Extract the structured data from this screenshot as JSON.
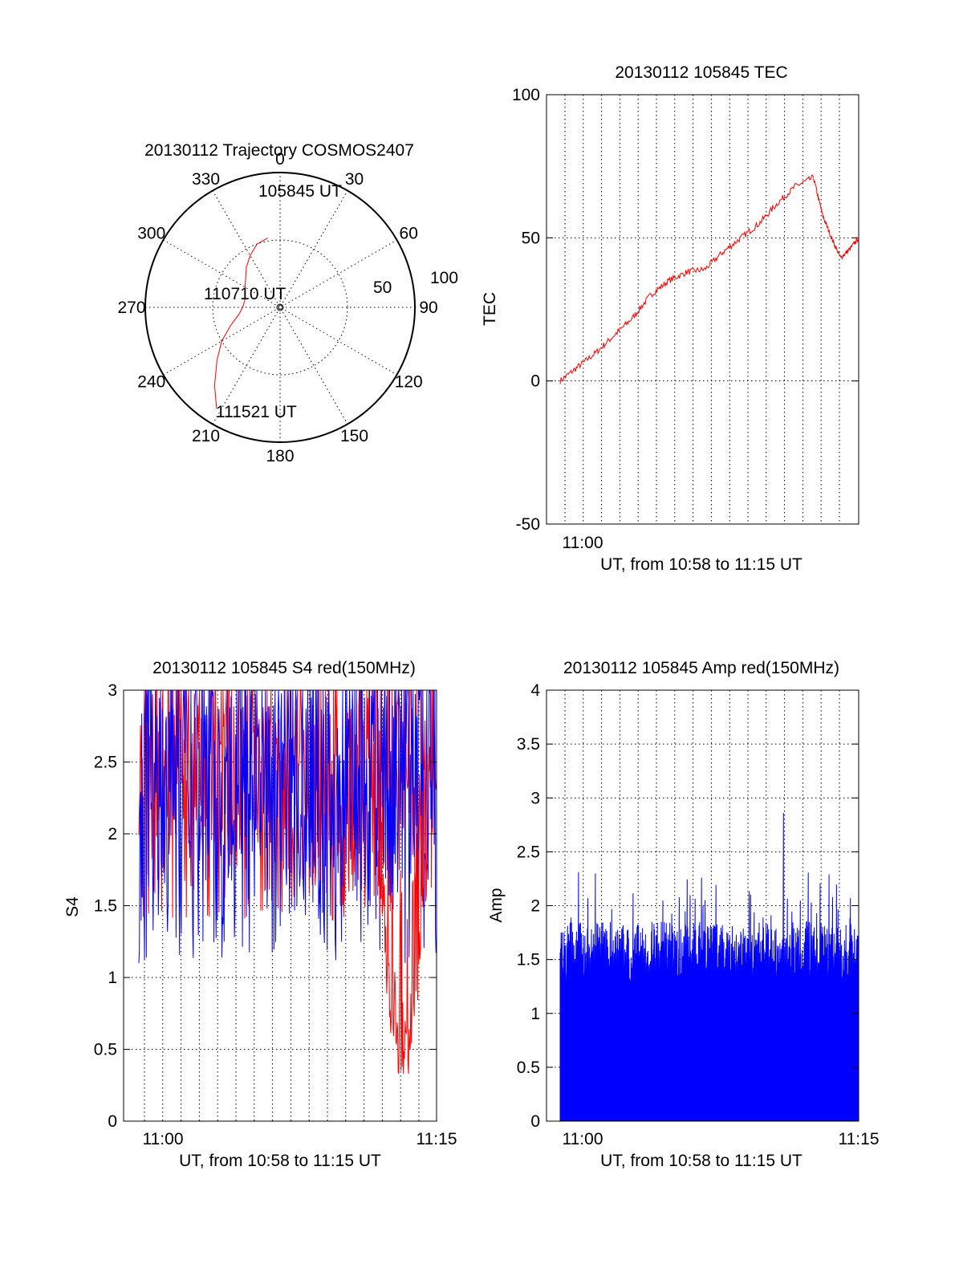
{
  "chart_data": [
    {
      "type": "polar",
      "title": "20130112 Trajectory COSMOS2407",
      "angle_labels": [
        "0",
        "30",
        "60",
        "90",
        "120",
        "150",
        "180",
        "210",
        "240",
        "270",
        "300",
        "330"
      ],
      "radial_labels": [
        "50",
        "100"
      ],
      "line_color": "#ff0000",
      "trajectory": {
        "azimuth_deg": [
          350,
          340,
          330,
          320,
          310,
          300,
          290,
          280,
          270,
          260,
          250,
          240,
          230,
          220,
          212
        ],
        "zenith": [
          47,
          45,
          40,
          35,
          30,
          27,
          25,
          24,
          25,
          28,
          35,
          45,
          55,
          68,
          80
        ]
      },
      "annotations": [
        {
          "text": "105845 UT",
          "azimuth_deg": 350,
          "zenith": 47
        },
        {
          "text": "110710 UT",
          "azimuth_deg": 270,
          "zenith": 25
        },
        {
          "text": "111521 UT",
          "azimuth_deg": 212,
          "zenith": 80
        }
      ]
    },
    {
      "type": "line",
      "title": "20130112 105845 TEC",
      "xlabel": "UT, from 10:58 to 11:15 UT",
      "ylabel": "TEC",
      "x_tick_labels": [
        "11:00"
      ],
      "y_ticks": [
        -50,
        0,
        50,
        100
      ],
      "ylim": [
        -50,
        100
      ],
      "color": "#ff0000",
      "series": [
        {
          "x": [
            10.98,
            11.0,
            11.02,
            11.04,
            11.06,
            11.08,
            11.1,
            11.12,
            11.14,
            11.16,
            11.18,
            11.2,
            11.22,
            11.24,
            11.26
          ],
          "y": [
            0,
            5,
            10,
            16,
            22,
            30,
            35,
            38,
            39,
            45,
            50,
            55,
            62,
            68,
            71
          ]
        },
        {
          "x": [
            11.26,
            11.27,
            11.28,
            11.29,
            11.3,
            11.31
          ],
          "y": [
            71,
            58,
            50,
            43,
            46,
            50
          ]
        }
      ]
    },
    {
      "type": "line",
      "title": "20130112 105845 S4 red(150MHz)",
      "xlabel": "UT, from 10:58 to 11:15 UT",
      "ylabel": "S4",
      "x_tick_labels": [
        "11:00",
        "11:15"
      ],
      "y_tick_labels": [
        "0",
        "0.5",
        "1",
        "1.5",
        "2",
        "2.5",
        "3"
      ],
      "ylim": [
        0,
        3
      ],
      "series_colors": [
        "#ff0000",
        "#0000ff"
      ],
      "red_min_dip": 0.33
    },
    {
      "type": "area",
      "title": "20130112 105845 Amp red(150MHz)",
      "xlabel": "UT, from 10:58 to 11:15 UT",
      "ylabel": "Amp",
      "x_tick_labels": [
        "11:00",
        "11:15"
      ],
      "y_tick_labels": [
        "0",
        "0.5",
        "1",
        "1.5",
        "2",
        "2.5",
        "3",
        "3.5",
        "4"
      ],
      "ylim": [
        0,
        4
      ],
      "color": "#0000ff",
      "peak": 2.86
    }
  ]
}
